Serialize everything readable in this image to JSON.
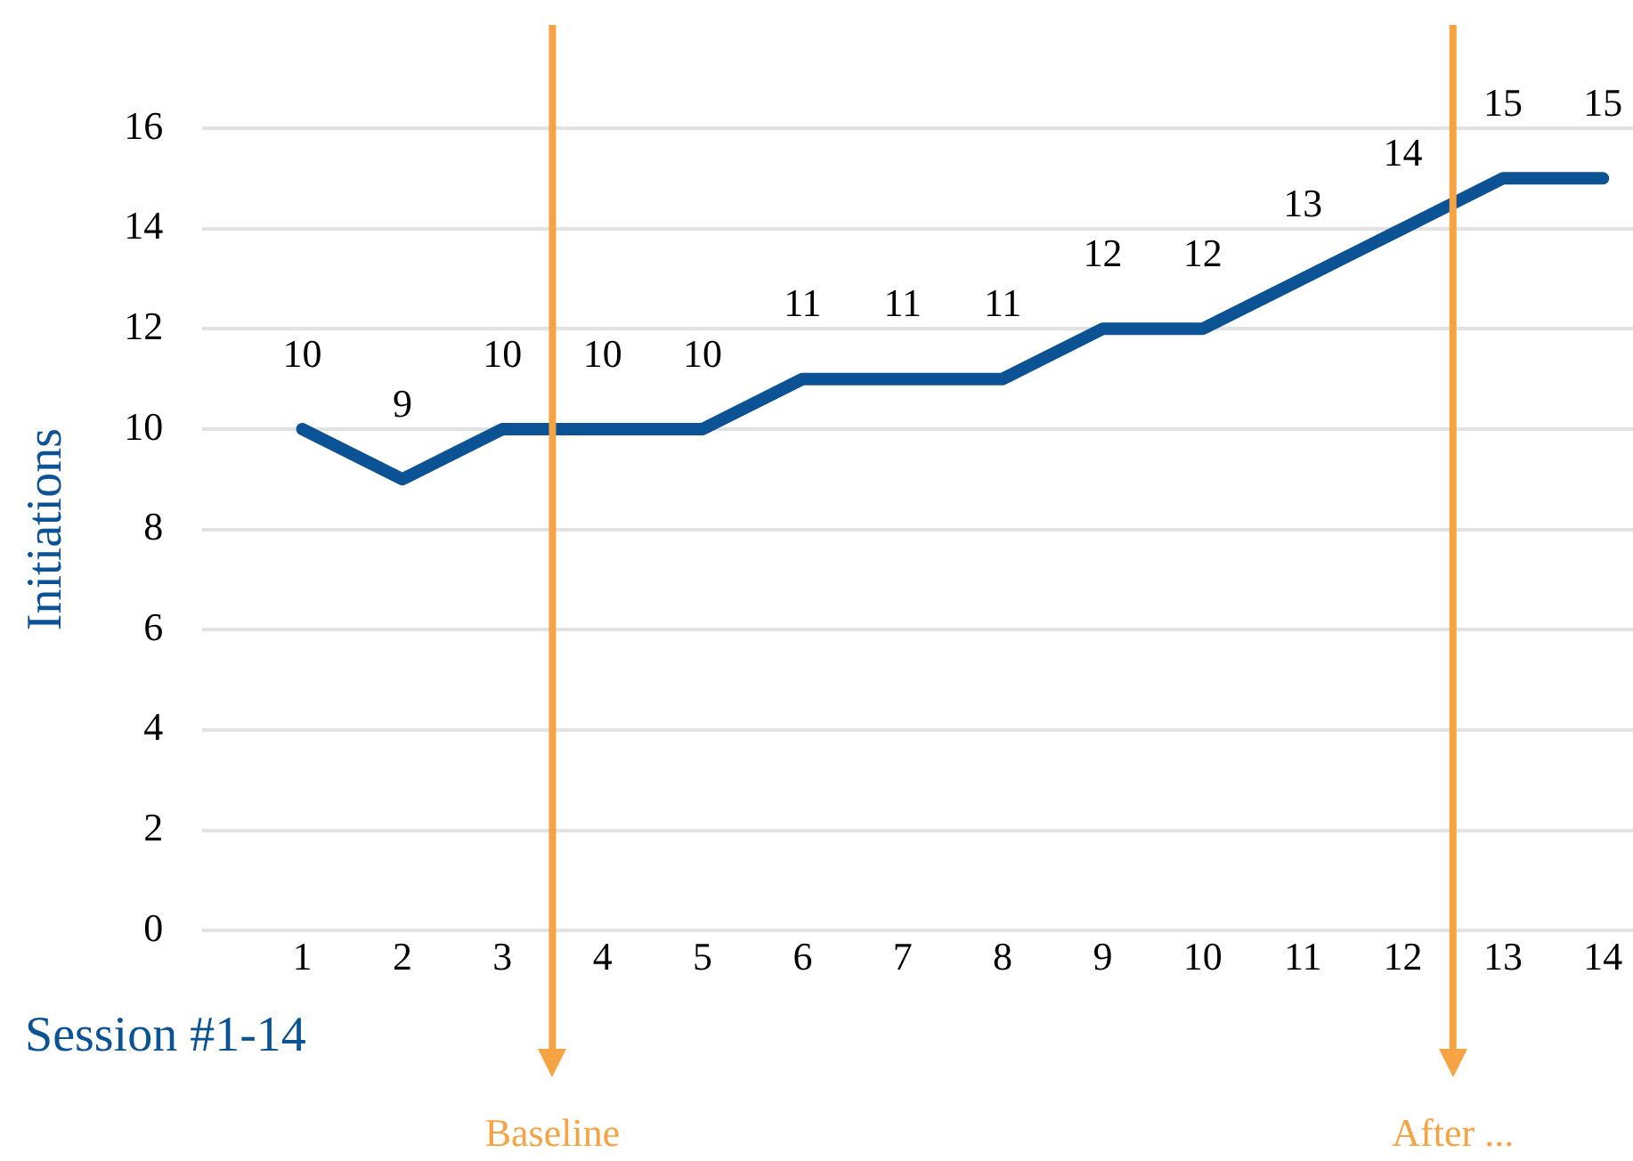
{
  "chart_data": {
    "type": "line",
    "xlabel": "Session #1-14",
    "ylabel": "Initiations",
    "x": [
      1,
      2,
      3,
      4,
      5,
      6,
      7,
      8,
      9,
      10,
      11,
      12,
      13,
      14
    ],
    "series": [
      {
        "color": "#0b5394",
        "values": [
          10,
          9,
          10,
          10,
          10,
          11,
          11,
          11,
          12,
          12,
          13,
          14,
          15,
          15
        ]
      }
    ],
    "xlim": [
      0,
      14.3
    ],
    "xticks": [
      1,
      2,
      3,
      4,
      5,
      6,
      7,
      8,
      9,
      10,
      11,
      12,
      13,
      14
    ],
    "ylim": [
      0,
      16
    ],
    "yticks": [
      0,
      2,
      4,
      6,
      8,
      10,
      12,
      14,
      16
    ],
    "grid": "y",
    "legend": false,
    "marker": "none",
    "line_style": "solid",
    "data_labels": true,
    "ref_lines": [
      {
        "axis": "x",
        "value": 3.5,
        "label": "Baseline",
        "color": "#f6a343"
      },
      {
        "axis": "x",
        "value": 12.5,
        "label": "After ...",
        "color": "#f6a343"
      }
    ]
  }
}
